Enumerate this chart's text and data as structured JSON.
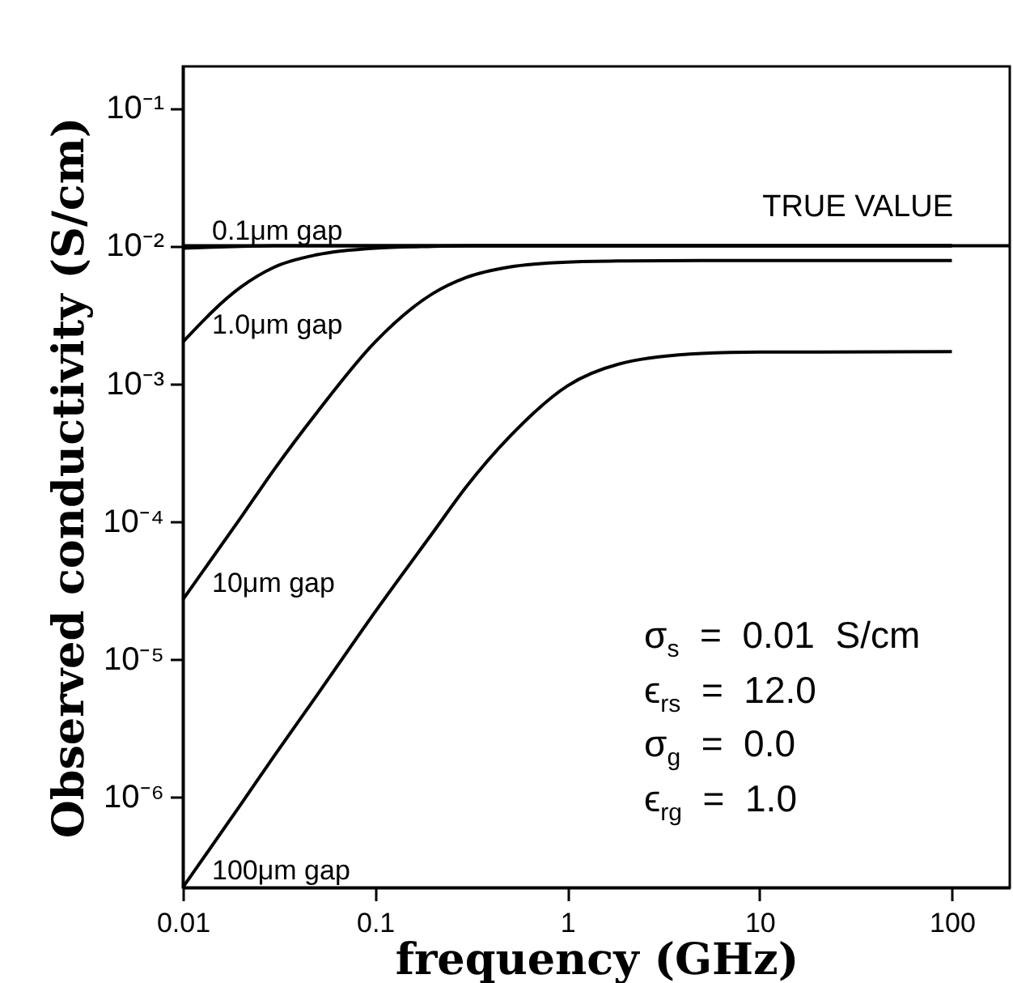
{
  "chart_data": {
    "type": "line",
    "xlabel": "frequency (GHz)",
    "ylabel": "Observed conductivity (S/cm)",
    "log": "xy",
    "grid": false,
    "marker": "none",
    "line_style": "solid",
    "x": [
      0.01,
      0.02,
      0.03,
      0.05,
      0.1,
      0.2,
      0.3,
      0.5,
      1,
      2,
      5,
      10,
      100
    ],
    "xlim": [
      0.01,
      200
    ],
    "xticks": [
      0.01,
      0.1,
      1,
      10,
      100
    ],
    "ylim": [
      2.2e-07,
      0.2
    ],
    "yticks": [
      {
        "value": 0.1,
        "label": "10⁻¹"
      },
      {
        "value": 0.01,
        "label": "10⁻²"
      },
      {
        "value": 0.001,
        "label": "10⁻³"
      },
      {
        "value": 0.0001,
        "label": "10⁻⁴"
      },
      {
        "value": 1e-05,
        "label": "10⁻⁵"
      },
      {
        "value": 1e-06,
        "label": "10⁻⁶"
      }
    ],
    "series": [
      {
        "name": "0.1μm gap",
        "color": "#000000",
        "values": [
          0.0096,
          0.0099,
          0.01,
          0.01,
          0.01,
          0.01,
          0.01,
          0.01,
          0.01,
          0.01,
          0.01,
          0.01,
          0.01
        ]
      },
      {
        "name": "1.0μm gap",
        "color": "#000000",
        "values": [
          0.002,
          0.005,
          0.007,
          0.0086,
          0.0096,
          0.0099,
          0.01,
          0.01,
          0.01,
          0.01,
          0.01,
          0.01,
          0.01
        ]
      },
      {
        "name": "10μm gap",
        "color": "#000000",
        "values": [
          2.7e-05,
          0.000106,
          0.00024,
          0.00062,
          0.002,
          0.0045,
          0.0059,
          0.007,
          0.0076,
          0.00775,
          0.0078,
          0.0078,
          0.0078
        ]
      },
      {
        "name": "100μm gap",
        "color": "#000000",
        "values": [
          2.2e-07,
          8.8e-07,
          2e-06,
          5.5e-06,
          2.2e-05,
          8.3e-05,
          0.00018,
          0.00041,
          0.00096,
          0.00142,
          0.00165,
          0.00169,
          0.0017
        ]
      }
    ],
    "ref_lines": [
      {
        "axis": "y",
        "value": 0.01,
        "label": "TRUE VALUE",
        "color": "#000000"
      }
    ],
    "annotations": [
      "σ$_{s}$  =  0.01  S/cm",
      "ϵ$_{rs}$  =  12.0",
      "σ$_{g}$  =  0.0",
      "ϵ$_{rg}$  =  1.0"
    ]
  }
}
